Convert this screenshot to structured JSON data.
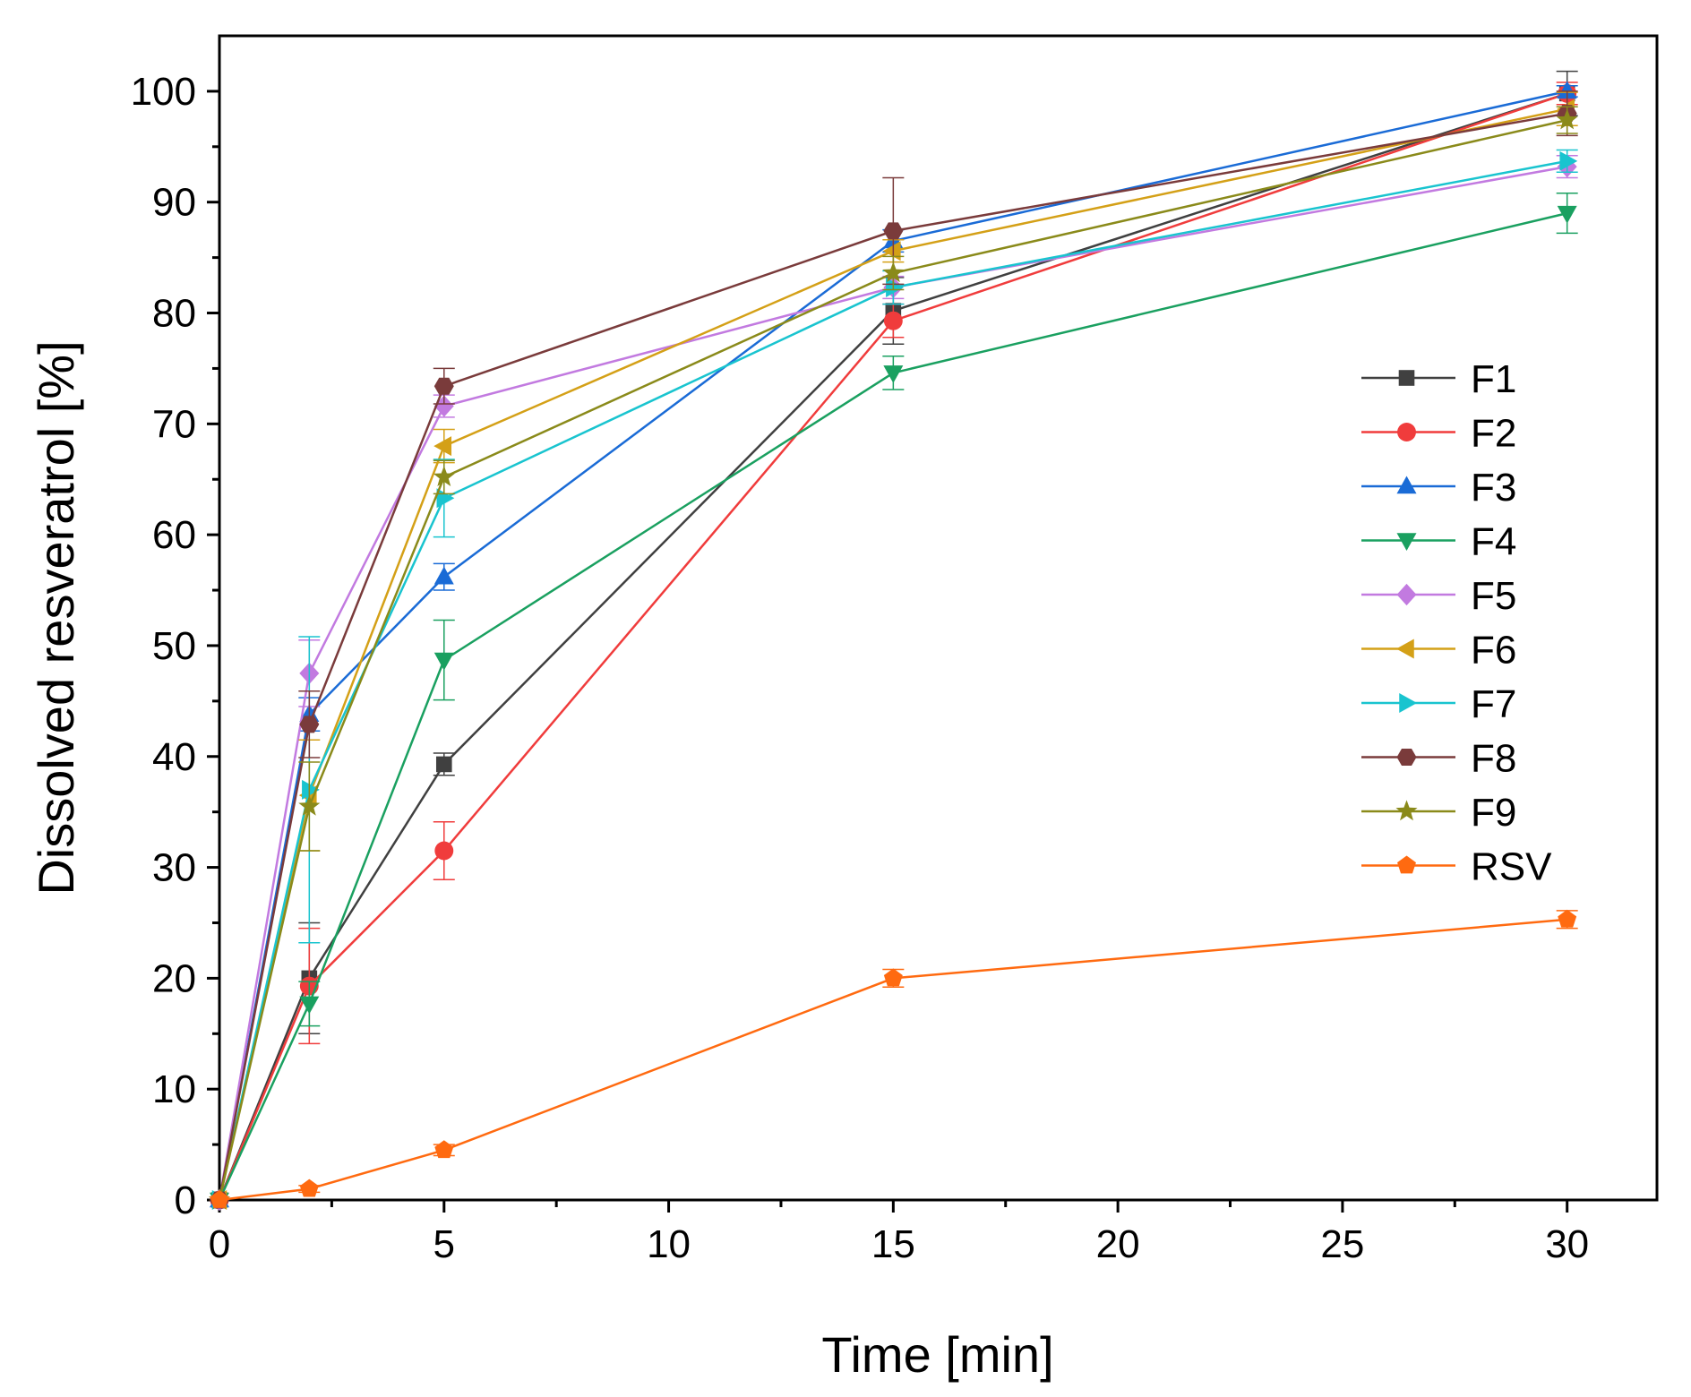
{
  "chart_data": {
    "type": "line",
    "title": "",
    "xlabel": "Time [min]",
    "ylabel": "Dissolved resveratrol [%]",
    "xlim": [
      0,
      32
    ],
    "ylim": [
      0,
      105
    ],
    "xticks": [
      0,
      5,
      10,
      15,
      20,
      25,
      30
    ],
    "yticks": [
      0,
      10,
      20,
      30,
      40,
      50,
      60,
      70,
      80,
      90,
      100
    ],
    "x": [
      0,
      2,
      5,
      15,
      30
    ],
    "grid": false,
    "legend": "right",
    "series": [
      {
        "name": "F1",
        "color": "#404040",
        "marker": "square",
        "values": [
          0,
          20,
          39.3,
          80.2,
          99.8
        ],
        "errors": [
          0,
          5,
          1,
          3,
          2
        ]
      },
      {
        "name": "F2",
        "color": "#f03c3c",
        "marker": "circle",
        "values": [
          0,
          19.3,
          31.5,
          79.3,
          99.8
        ],
        "errors": [
          0,
          5.2,
          2.6,
          1.5,
          1
        ]
      },
      {
        "name": "F3",
        "color": "#1a6bd6",
        "marker": "triangle-up",
        "values": [
          0,
          43.8,
          56.2,
          86.5,
          100
        ],
        "errors": [
          0,
          1.5,
          1.2,
          1,
          0.5
        ]
      },
      {
        "name": "F4",
        "color": "#1aa060",
        "marker": "triangle-down",
        "values": [
          0,
          17.7,
          48.7,
          74.6,
          89
        ],
        "errors": [
          0,
          2,
          3.6,
          1.5,
          1.8
        ]
      },
      {
        "name": "F5",
        "color": "#c27ae0",
        "marker": "diamond",
        "values": [
          0,
          47.5,
          71.6,
          82.3,
          93.2
        ],
        "errors": [
          0,
          3,
          1,
          1,
          1
        ]
      },
      {
        "name": "F6",
        "color": "#d4a017",
        "marker": "triangle-left",
        "values": [
          0,
          36.5,
          68,
          85.6,
          98.4
        ],
        "errors": [
          0,
          5,
          1.5,
          1,
          1.5
        ]
      },
      {
        "name": "F7",
        "color": "#19c4cf",
        "marker": "triangle-right",
        "values": [
          0,
          37,
          63.3,
          82.3,
          93.7
        ],
        "errors": [
          0,
          13.8,
          3.5,
          1.5,
          1
        ]
      },
      {
        "name": "F8",
        "color": "#7a3b3b",
        "marker": "hexagon",
        "values": [
          0,
          42.9,
          73.4,
          87.4,
          98
        ],
        "errors": [
          0,
          3,
          1.6,
          4.8,
          2
        ]
      },
      {
        "name": "F9",
        "color": "#8a8a1a",
        "marker": "star",
        "values": [
          0,
          35.5,
          65.2,
          83.6,
          97.4
        ],
        "errors": [
          0,
          4,
          1.5,
          1.5,
          1.2
        ]
      },
      {
        "name": "RSV",
        "color": "#ff6a10",
        "marker": "pentagon",
        "values": [
          0,
          1,
          4.5,
          20,
          25.3
        ],
        "errors": [
          0,
          0.3,
          0.5,
          0.8,
          0.8
        ]
      }
    ]
  }
}
